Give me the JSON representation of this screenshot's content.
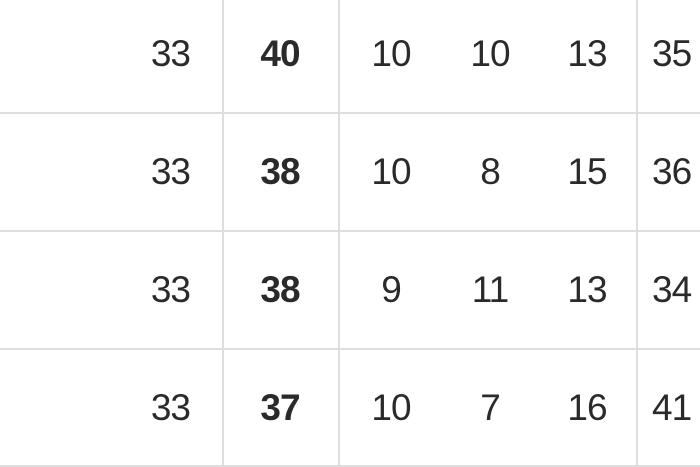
{
  "table": {
    "rows": [
      {
        "c1": "33",
        "c2": "40",
        "c3": "10",
        "c4": "10",
        "c5": "13",
        "c6": "35"
      },
      {
        "c1": "33",
        "c2": "38",
        "c3": "10",
        "c4": "8",
        "c5": "15",
        "c6": "36"
      },
      {
        "c1": "33",
        "c2": "38",
        "c3": "9",
        "c4": "11",
        "c5": "13",
        "c6": "34"
      },
      {
        "c1": "33",
        "c2": "37",
        "c3": "10",
        "c4": "7",
        "c5": "16",
        "c6": "41"
      }
    ]
  }
}
